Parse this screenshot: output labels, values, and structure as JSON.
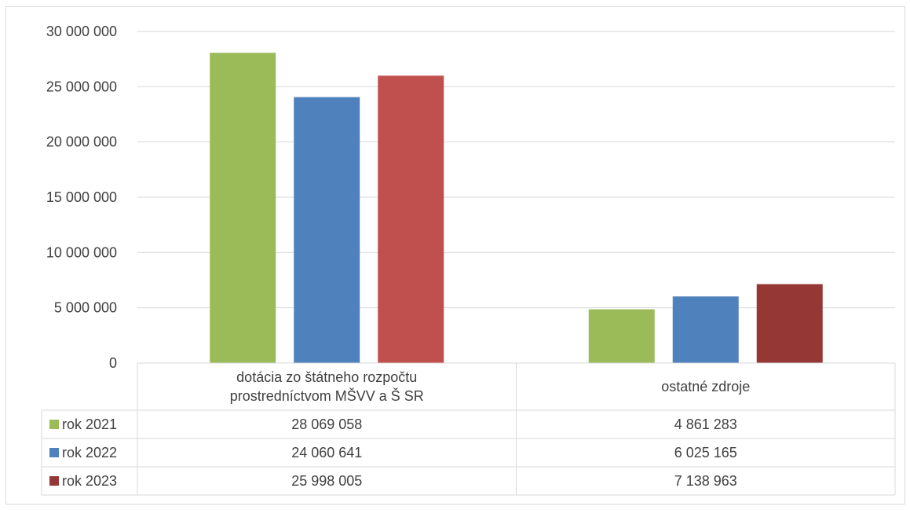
{
  "chart_data": {
    "type": "bar",
    "categories": [
      [
        "dotácia zo štátneho rozpočtu",
        "prostredníctvom MŠVV a Š SR"
      ],
      [
        "ostatné zdroje"
      ]
    ],
    "series": [
      {
        "name": "rok 2021",
        "values": [
          28069058,
          4861283
        ],
        "display": [
          "28 069 058",
          "4 861 283"
        ],
        "colors": [
          "#9bbb59",
          "#9bbb59"
        ]
      },
      {
        "name": "rok 2022",
        "values": [
          24060641,
          6025165
        ],
        "display": [
          "24 060 641",
          "6 025 165"
        ],
        "colors": [
          "#4f81bd",
          "#4f81bd"
        ]
      },
      {
        "name": "rok 2023",
        "values": [
          25998005,
          7138963
        ],
        "display": [
          "25 998 005",
          "7 138 963"
        ],
        "colors": [
          "#c0504d",
          "#953735"
        ]
      }
    ],
    "legend_colors": [
      "#9bbb59",
      "#4f81bd",
      "#953735"
    ],
    "ylim": [
      0,
      30000000
    ],
    "yticks": [
      0,
      5000000,
      10000000,
      15000000,
      20000000,
      25000000,
      30000000
    ],
    "ytick_labels": [
      "0",
      "5 000 000",
      "10 000 000",
      "15 000 000",
      "20 000 000",
      "25 000 000",
      "30 000 000"
    ],
    "grid": true,
    "legend": "data-table",
    "title": "",
    "xlabel": "",
    "ylabel": ""
  }
}
